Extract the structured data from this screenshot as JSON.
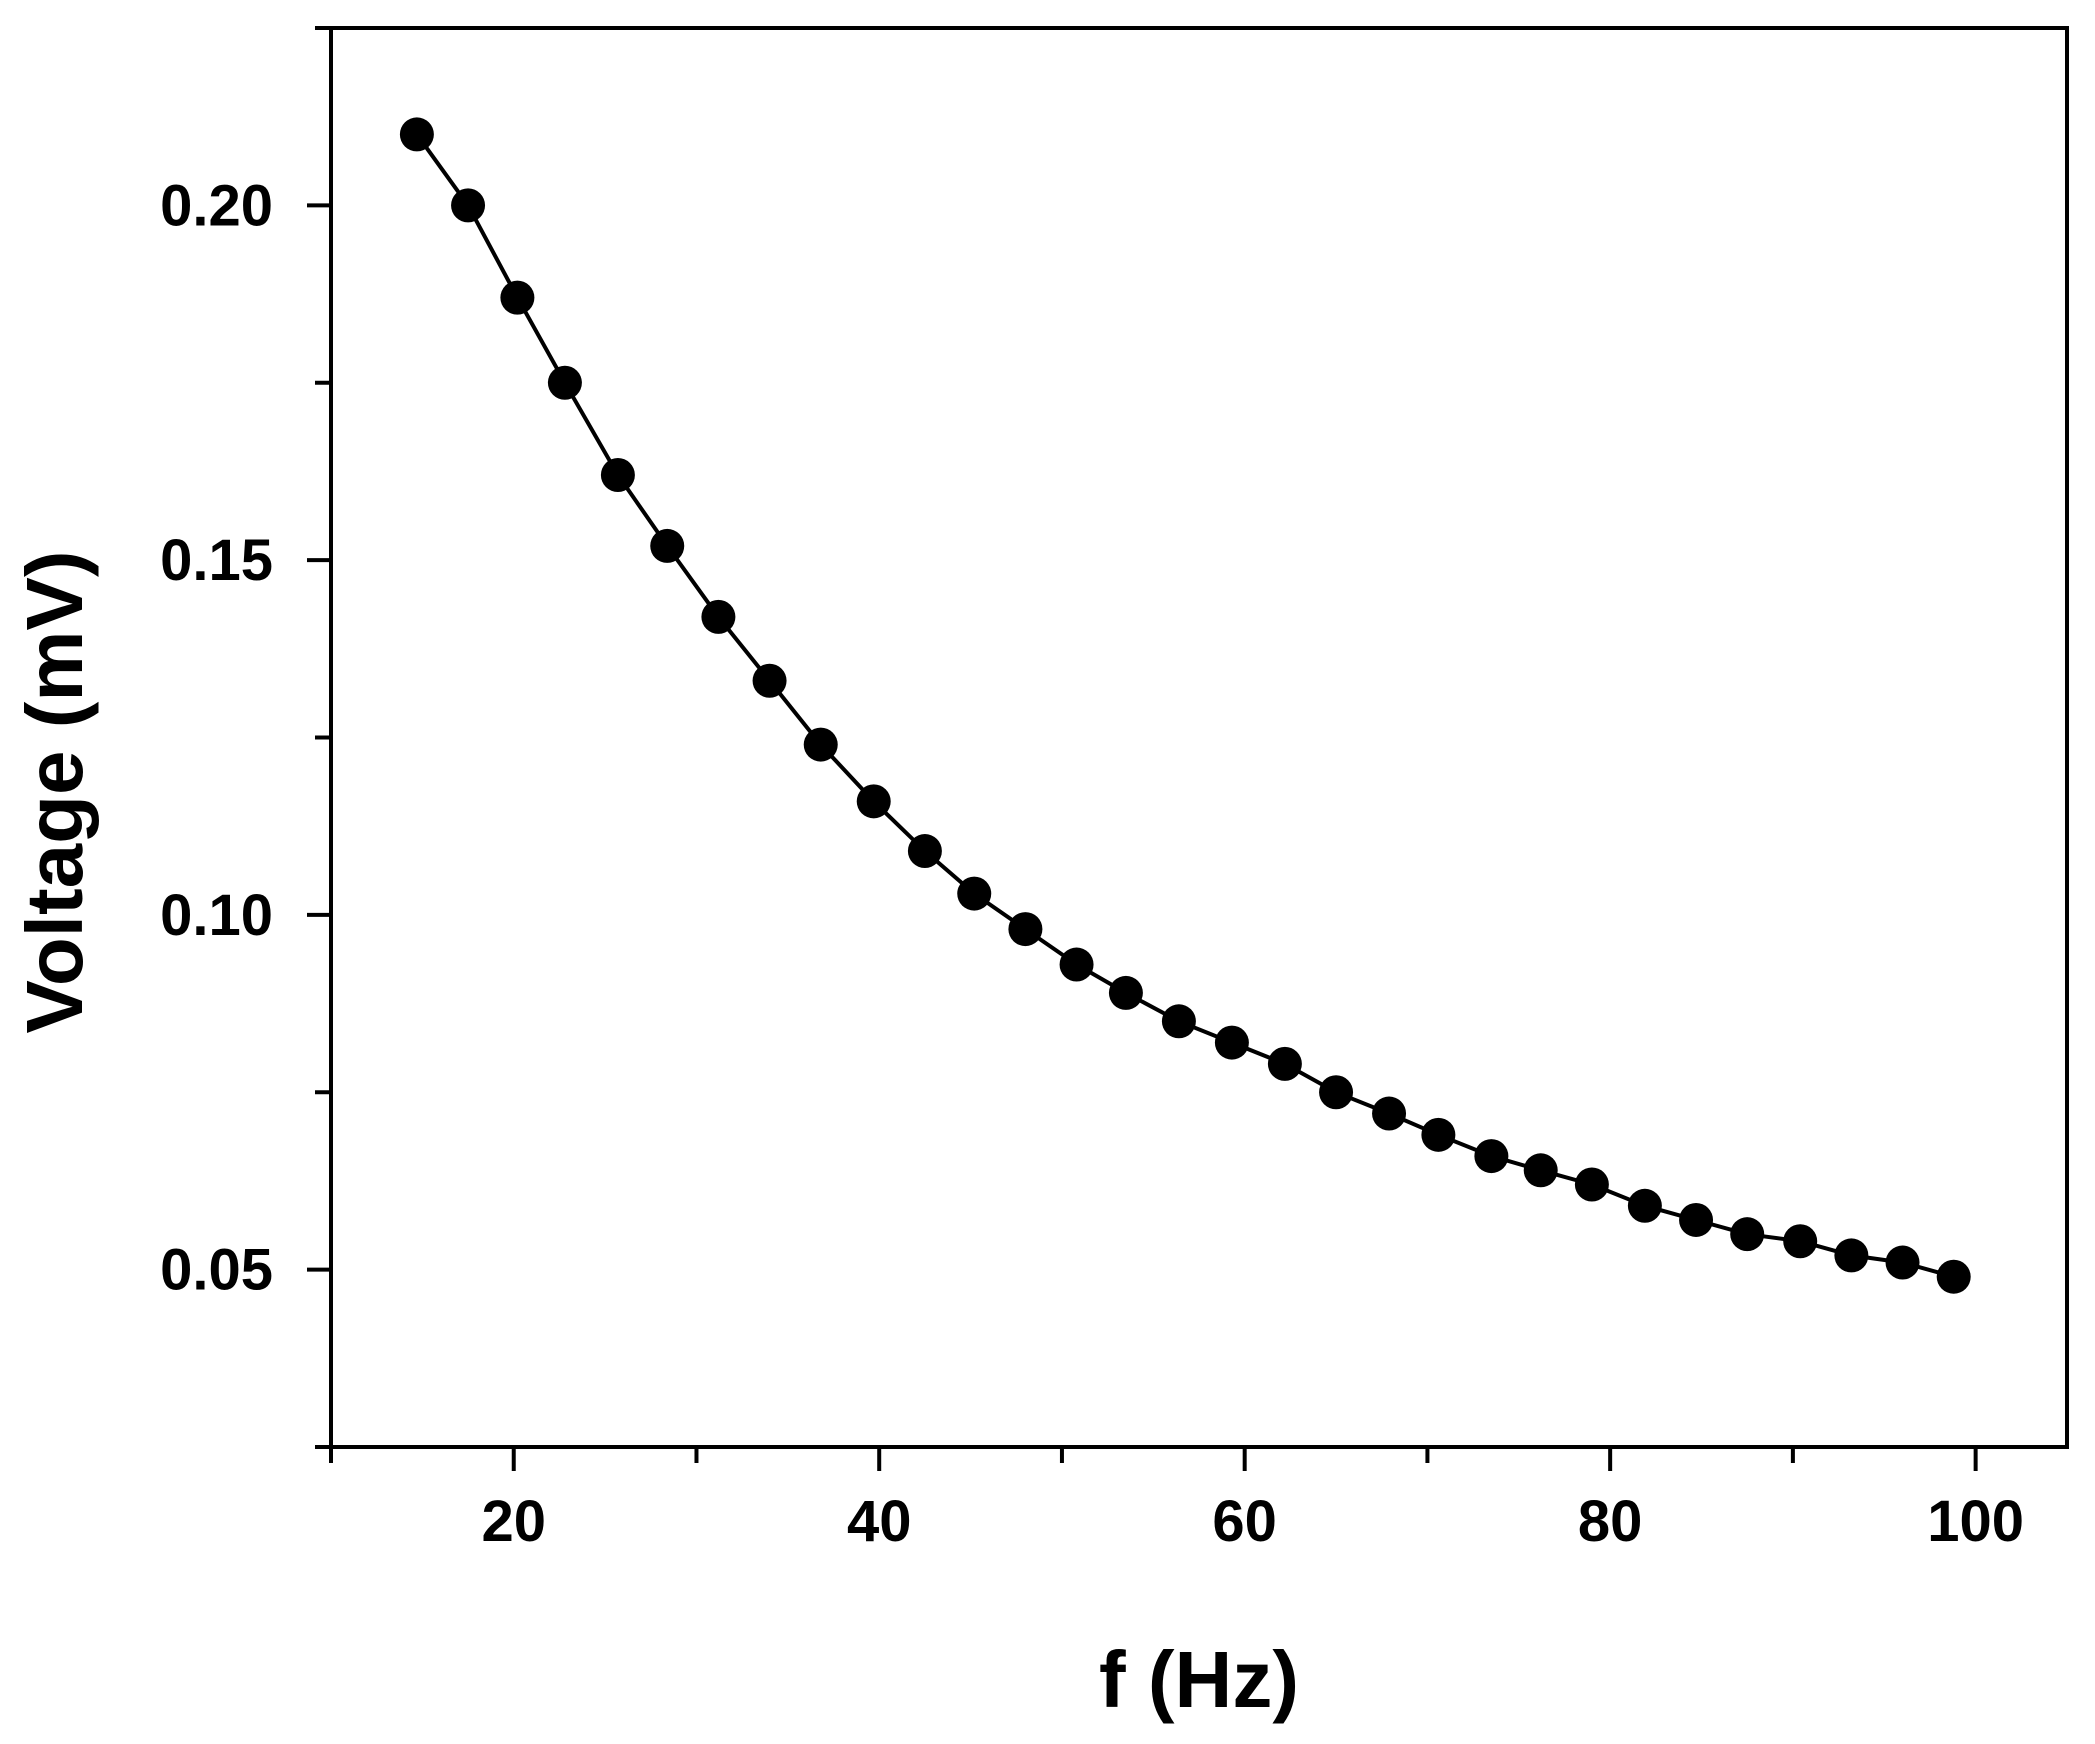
{
  "chart_data": {
    "type": "line",
    "title": "",
    "xlabel": "f (Hz)",
    "ylabel": "Voltage (mV)",
    "xlim": [
      10,
      105
    ],
    "ylim": [
      0.025,
      0.225
    ],
    "x_ticks": [
      20,
      40,
      60,
      80,
      100
    ],
    "x_tick_labels": [
      "20",
      "40",
      "60",
      "80",
      "100"
    ],
    "x_minor_ticks": [
      10,
      30,
      50,
      70,
      90
    ],
    "y_ticks": [
      0.05,
      0.1,
      0.15,
      0.2
    ],
    "y_tick_labels": [
      "0.05",
      "0.10",
      "0.15",
      "0.20"
    ],
    "y_minor_ticks": [
      0.025,
      0.075,
      0.125,
      0.175,
      0.225
    ],
    "grid": false,
    "legend": "none",
    "series": [
      {
        "marker": "circle",
        "line": true,
        "color": "#000000",
        "x": [
          14.7,
          17.5,
          20.2,
          22.8,
          25.7,
          28.4,
          31.2,
          34.0,
          36.8,
          39.7,
          42.5,
          45.2,
          48.0,
          50.8,
          53.5,
          56.4,
          59.3,
          62.2,
          65.0,
          67.9,
          70.6,
          73.5,
          76.2,
          79.0,
          81.9,
          84.7,
          87.5,
          90.4,
          93.2,
          96.0,
          98.8
        ],
        "y": [
          0.21,
          0.2,
          0.187,
          0.175,
          0.162,
          0.152,
          0.142,
          0.133,
          0.124,
          0.116,
          0.109,
          0.103,
          0.098,
          0.093,
          0.089,
          0.085,
          0.082,
          0.079,
          0.075,
          0.072,
          0.069,
          0.066,
          0.064,
          0.062,
          0.059,
          0.057,
          0.055,
          0.054,
          0.052,
          0.051,
          0.049
        ]
      }
    ]
  }
}
